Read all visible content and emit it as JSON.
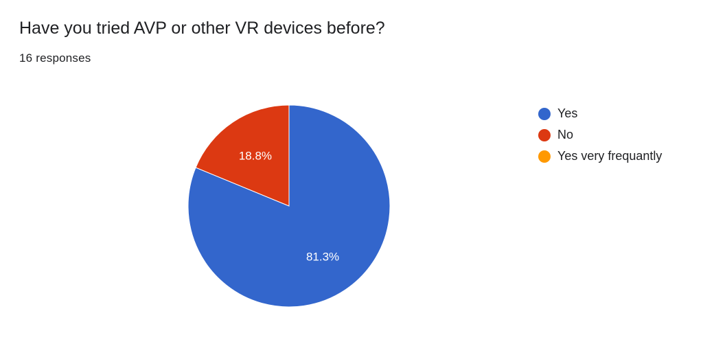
{
  "header": {
    "title": "Have you tried AVP or other VR devices before?",
    "responses": "16 responses"
  },
  "chart_data": {
    "type": "pie",
    "legend_position": "right",
    "slices": [
      {
        "label": "Yes",
        "value": 81.3,
        "display": "81.3%",
        "color": "#3366cc"
      },
      {
        "label": "No",
        "value": 18.8,
        "display": "18.8%",
        "color": "#dc3912"
      },
      {
        "label": "Yes very frequantly",
        "value": 0,
        "display": "",
        "color": "#ff9900"
      }
    ]
  }
}
